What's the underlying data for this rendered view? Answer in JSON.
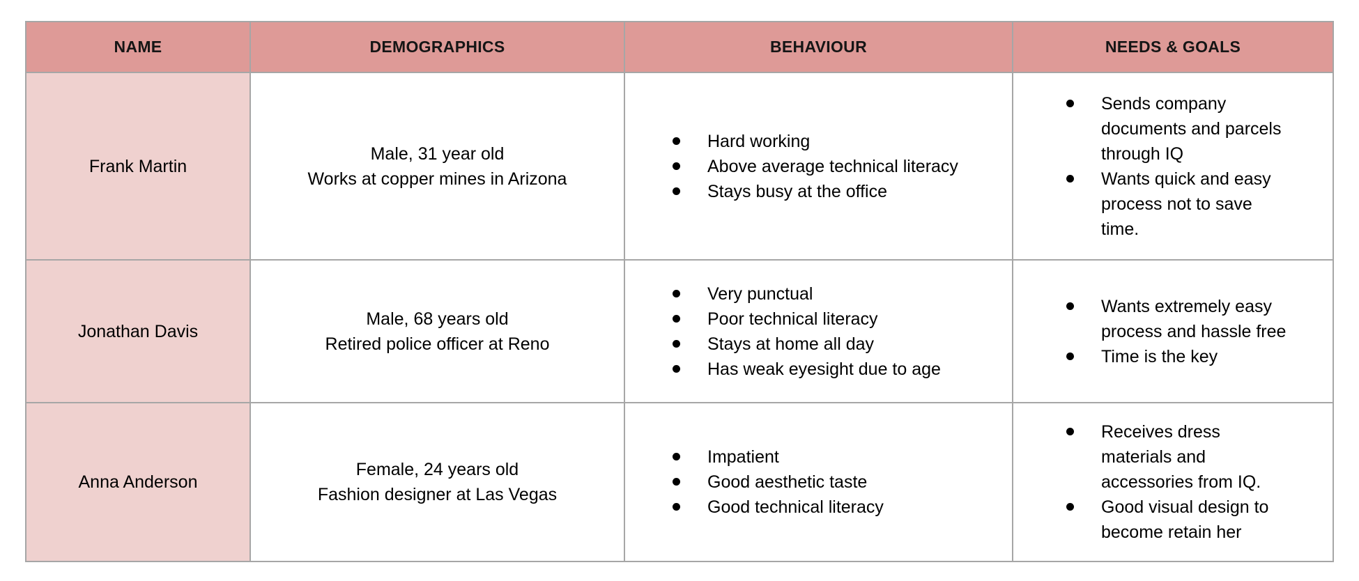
{
  "table": {
    "headers": [
      "NAME",
      "DEMOGRAPHICS",
      "BEHAVIOUR",
      "NEEDS & GOALS"
    ],
    "colors": {
      "header_bg": "#de9a97",
      "name_cell_bg": "#efd1cf",
      "border": "#a6a6a6",
      "text": "#000000"
    },
    "rows": [
      {
        "name": "Frank Martin",
        "demographics": [
          "Male, 31 year old",
          "Works at copper mines in Arizona"
        ],
        "behaviour": [
          "Hard working",
          "Above average technical literacy",
          "Stays busy at the office"
        ],
        "needs_goals": [
          "Sends company documents and parcels through IQ",
          "Wants quick and easy process not to save time."
        ]
      },
      {
        "name": "Jonathan Davis",
        "demographics": [
          "Male, 68 years old",
          "Retired police officer at Reno"
        ],
        "behaviour": [
          "Very punctual",
          "Poor technical literacy",
          "Stays at home all day",
          "Has weak eyesight due to age"
        ],
        "needs_goals": [
          "Wants extremely easy process and hassle free",
          "Time is the key"
        ]
      },
      {
        "name": "Anna Anderson",
        "demographics": [
          "Female, 24 years old",
          "Fashion designer at Las Vegas"
        ],
        "behaviour": [
          "Impatient",
          "Good aesthetic taste",
          "Good technical literacy"
        ],
        "needs_goals": [
          "Receives dress materials and accessories from IQ.",
          "Good visual design to become retain her"
        ]
      }
    ]
  }
}
